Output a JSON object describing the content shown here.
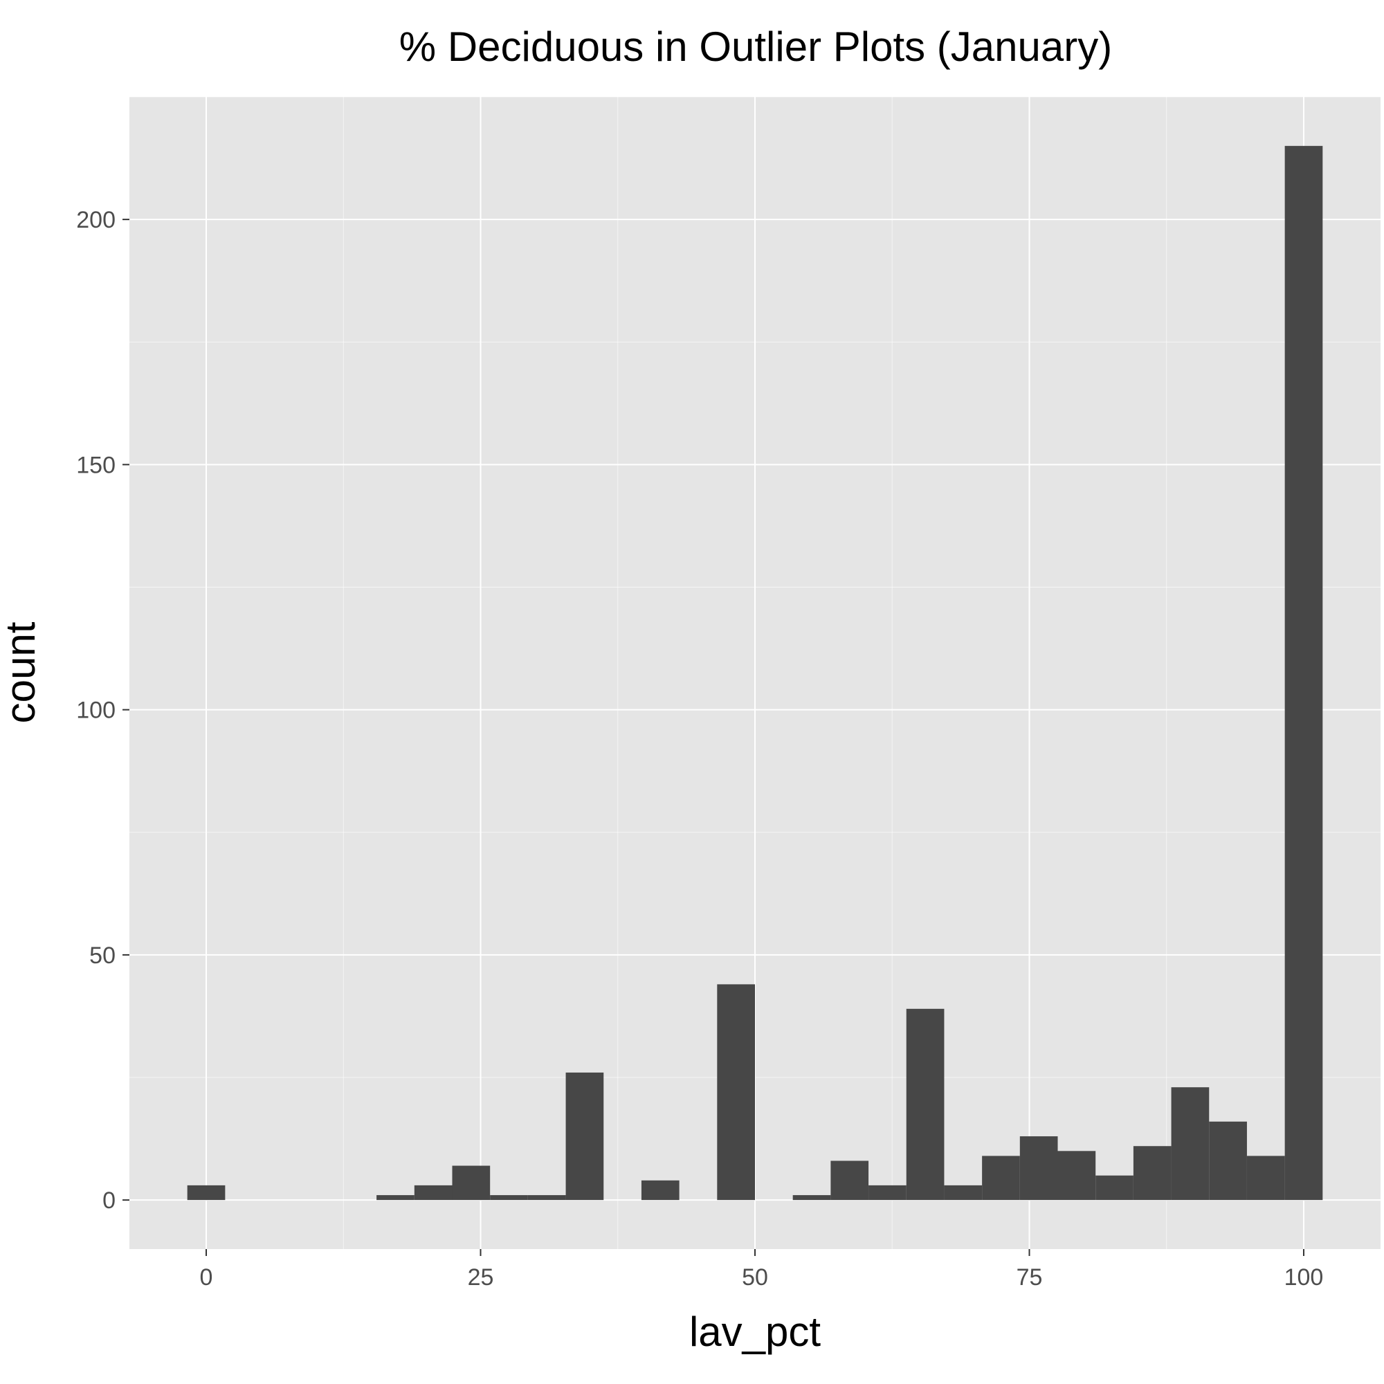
{
  "chart_data": {
    "type": "bar",
    "title": "% Deciduous in Outlier Plots (January)",
    "xlabel": "lav_pct",
    "ylabel": "count",
    "xlim": [
      -7,
      107
    ],
    "ylim": [
      -10,
      225
    ],
    "x_ticks": [
      0,
      25,
      50,
      75,
      100
    ],
    "x_tick_labels": [
      "0",
      "25",
      "50",
      "75",
      "100"
    ],
    "y_ticks": [
      0,
      50,
      100,
      150,
      200
    ],
    "y_tick_labels": [
      "0",
      "50",
      "100",
      "150",
      "200"
    ],
    "bin_width": 3.448,
    "bin_centers": [
      0,
      3.448,
      6.897,
      10.345,
      13.793,
      17.241,
      20.69,
      24.138,
      27.586,
      31.034,
      34.483,
      37.931,
      41.379,
      44.828,
      48.276,
      51.724,
      55.172,
      58.621,
      62.069,
      65.517,
      68.966,
      72.414,
      75.862,
      79.31,
      82.759,
      86.207,
      89.655,
      93.103,
      96.552,
      100
    ],
    "values": [
      3,
      0,
      0,
      0,
      0,
      1,
      3,
      7,
      1,
      1,
      26,
      0,
      4,
      0,
      44,
      0,
      1,
      8,
      3,
      39,
      3,
      9,
      13,
      10,
      5,
      11,
      23,
      16,
      9,
      215
    ],
    "grid": true,
    "colors": {
      "panel_background": "#e5e5e5",
      "grid_major": "#ffffff",
      "bar_fill": "#474747",
      "tick_label": "#4d4d4d",
      "text": "#000000"
    }
  }
}
